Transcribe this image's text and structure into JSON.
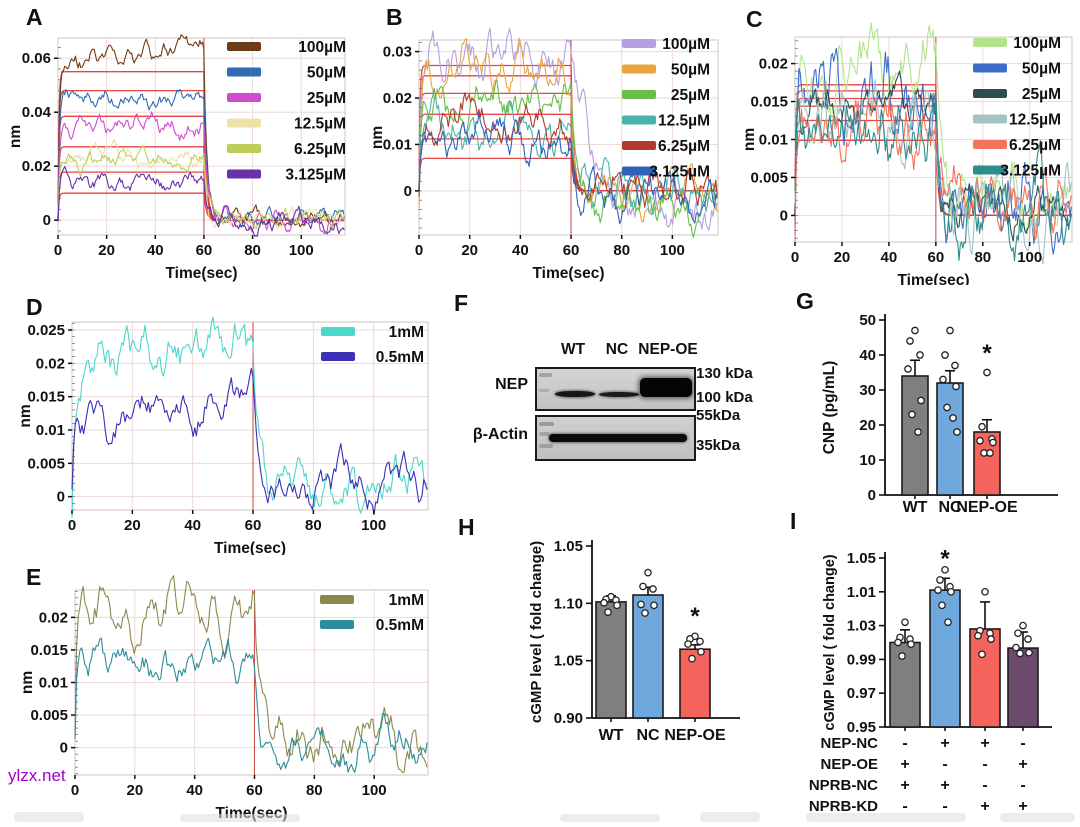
{
  "figure": {
    "watermark": {
      "text": "ylzx.net",
      "color": "#a100cf"
    },
    "panel_letters": [
      "A",
      "B",
      "C",
      "D",
      "E",
      "F",
      "G",
      "H",
      "I"
    ]
  },
  "chart_data": [
    {
      "id": "A",
      "type": "line",
      "xlabel": "Time(sec)",
      "ylabel": "nm",
      "xlim": [
        0,
        118
      ],
      "x_ticks": [
        0,
        20,
        40,
        60,
        80,
        100
      ],
      "ylim": [
        -0.0055,
        0.0675
      ],
      "y_ticks": [
        0,
        0.02,
        0.04,
        0.06
      ],
      "y_tick_labels": [
        "0",
        "0.02",
        "0.04",
        "0.06"
      ],
      "association_end_sec": 60,
      "fit_color": "#e03c3c",
      "series": [
        {
          "name": "100µM",
          "color": "#6e3b17",
          "plateau": 0.058,
          "drift": 0.007,
          "noise": 0.0016,
          "post": 0.0005
        },
        {
          "name": "50µM",
          "color": "#2f6cb3",
          "plateau": 0.0445,
          "drift": 0.001,
          "noise": 0.0015,
          "post": 0.0005
        },
        {
          "name": "25µM",
          "color": "#cf4ccf",
          "plateau": 0.034,
          "drift": 0.002,
          "noise": 0.0017,
          "post": -0.0005
        },
        {
          "name": "12.5µM",
          "color": "#eee0a9",
          "plateau": 0.0235,
          "drift": 0.001,
          "noise": 0.0015,
          "post": 0.0005
        },
        {
          "name": "6.25µM",
          "color": "#bfce59",
          "plateau": 0.0215,
          "drift": 0.0005,
          "noise": 0.0015,
          "post": 0
        },
        {
          "name": "3.125µM",
          "color": "#6930a8",
          "plateau": 0.0135,
          "drift": 0.001,
          "noise": 0.0015,
          "post": -0.001
        }
      ],
      "fit_plateaus": [
        0.055,
        0.048,
        0.0385,
        0.0272,
        0.0178,
        0.01
      ]
    },
    {
      "id": "B",
      "type": "line",
      "xlabel": "Time(sec)",
      "ylabel": "nm",
      "xlim": [
        0,
        118
      ],
      "x_ticks": [
        0,
        20,
        40,
        60,
        80,
        100
      ],
      "ylim": [
        -0.0095,
        0.0325
      ],
      "y_ticks": [
        0,
        0.01,
        0.02,
        0.03
      ],
      "y_tick_labels": [
        "0",
        "0.01",
        "0.02",
        "0.03"
      ],
      "association_end_sec": 60,
      "fit_color": "#e03c3c",
      "series": [
        {
          "name": "100µM",
          "color": "#b3a1e0",
          "plateau": 0.029,
          "drift": 0,
          "noise": 0.0022,
          "post": -0.0055,
          "post_tau": 9
        },
        {
          "name": "50µM",
          "color": "#e9a43f",
          "plateau": 0.026,
          "drift": 0,
          "noise": 0.0018,
          "post": -0.001
        },
        {
          "name": "25µM",
          "color": "#67bf4a",
          "plateau": 0.019,
          "drift": 0,
          "noise": 0.0018,
          "post": -0.0025
        },
        {
          "name": "12.5µM",
          "color": "#46b5aa",
          "plateau": 0.013,
          "drift": 0,
          "noise": 0.0018,
          "post": 0.0005
        },
        {
          "name": "6.25µM",
          "color": "#b23a2c",
          "plateau": 0.014,
          "drift": 0,
          "noise": 0.0018,
          "post": 0.001
        },
        {
          "name": "3.125µM",
          "color": "#2f63b8",
          "plateau": 0.011,
          "drift": 0,
          "noise": 0.0018,
          "post": -0.0005
        }
      ],
      "fit_plateaus": [
        0.027,
        0.0248,
        0.021,
        0.0165,
        0.0112,
        0.007
      ]
    },
    {
      "id": "C",
      "type": "line",
      "xlabel": "Time(sec)",
      "ylabel": "nm",
      "xlim": [
        0,
        118
      ],
      "x_ticks": [
        0,
        20,
        40,
        60,
        80,
        100
      ],
      "ylim": [
        -0.0035,
        0.0235
      ],
      "y_ticks": [
        0,
        0.005,
        0.01,
        0.015,
        0.02
      ],
      "y_tick_labels": [
        "0",
        "0.005",
        "0.01",
        "0.015",
        "0.02"
      ],
      "association_end_sec": 60,
      "fit_color": "#e03c3c",
      "series": [
        {
          "name": "100µM",
          "color": "#b5e28c",
          "plateau": 0.02,
          "drift": 0,
          "noise": 0.0018,
          "post": 0.002
        },
        {
          "name": "50µM",
          "color": "#3f6bca",
          "plateau": 0.016,
          "drift": 0,
          "noise": 0.0021,
          "post": 0.001
        },
        {
          "name": "25µM",
          "color": "#2e4d4d",
          "plateau": 0.015,
          "drift": 0,
          "noise": 0.0012,
          "post": 0.001
        },
        {
          "name": "12.5µM",
          "color": "#a3c3c4",
          "plateau": 0.0135,
          "drift": 0,
          "noise": 0.0018,
          "post": 0.0015
        },
        {
          "name": "6.25µM",
          "color": "#f2745a",
          "plateau": 0.012,
          "drift": 0,
          "noise": 0.0018,
          "post": 0.002
        },
        {
          "name": "3.125µM",
          "color": "#2f8c8c",
          "plateau": 0.011,
          "drift": 0,
          "noise": 0.002,
          "post": 0.0005
        }
      ],
      "fit_plateaus": [
        0.0172,
        0.0164,
        0.0154,
        0.0144,
        0.0125,
        0.0099
      ]
    },
    {
      "id": "D",
      "type": "line",
      "xlabel": "Time(sec)",
      "ylabel": "nm",
      "xlim": [
        0,
        118
      ],
      "x_ticks": [
        0,
        20,
        40,
        60,
        80,
        100
      ],
      "ylim": [
        -0.002,
        0.0262
      ],
      "y_ticks": [
        0,
        0.005,
        0.01,
        0.015,
        0.02,
        0.025
      ],
      "y_tick_labels": [
        "0",
        "0.005",
        "0.01",
        "0.015",
        "0.02",
        "0.025"
      ],
      "association_end_sec": 60,
      "fit_color": "#e03c3c",
      "series": [
        {
          "name": "1mM",
          "color": "#4cd7cb",
          "plateau": 0.018,
          "drift": 0.0065,
          "noise": 0.0017,
          "post": 0.0025
        },
        {
          "name": "0.5mM",
          "color": "#3a30b5",
          "plateau": 0.0115,
          "drift": 0.003,
          "noise": 0.0014,
          "post": 0.0018
        }
      ],
      "fit_plateaus": []
    },
    {
      "id": "E",
      "type": "line",
      "xlabel": "Time(sec)",
      "ylabel": "nm",
      "xlim": [
        0,
        118
      ],
      "x_ticks": [
        0,
        20,
        40,
        60,
        80,
        100
      ],
      "ylim": [
        -0.0042,
        0.0242
      ],
      "y_ticks": [
        0,
        0.005,
        0.01,
        0.015,
        0.02
      ],
      "y_tick_labels": [
        "0",
        "0.005",
        "0.01",
        "0.015",
        "0.02"
      ],
      "association_end_sec": 60,
      "fit_color": "#e03c3c",
      "series": [
        {
          "name": "1mM",
          "color": "#8a8a4f",
          "plateau": 0.0205,
          "drift": 0.0015,
          "noise": 0.0016,
          "post": 0.001
        },
        {
          "name": "0.5mM",
          "color": "#2d8c9b",
          "plateau": 0.0135,
          "drift": 0,
          "noise": 0.0013,
          "post": 0.0003
        }
      ],
      "fit_plateaus": []
    },
    {
      "id": "F",
      "type": "blot",
      "lane_labels": [
        "WT",
        "NC",
        "NEP-OE"
      ],
      "rows": [
        {
          "target": "NEP",
          "marker_labels": [
            "130 kDa",
            "100 kDa"
          ],
          "band_intensities": [
            "medium",
            "medium",
            "strong"
          ]
        },
        {
          "target": "β-Actin",
          "marker_labels": [
            "55kDa",
            "35kDa"
          ],
          "band_intensities": [
            "strong",
            "strong",
            "strong"
          ]
        }
      ]
    },
    {
      "id": "G",
      "type": "bar",
      "ylabel": "CNP (pg/mL)",
      "categories": [
        "WT",
        "NC",
        "NEP-OE"
      ],
      "values": [
        34,
        32,
        18
      ],
      "error_tops": [
        38.5,
        35.5,
        21.5
      ],
      "ylim": [
        0,
        50
      ],
      "tick_labels_top_to_bottom": [
        "50",
        "40",
        "30",
        "20",
        "10",
        "0"
      ],
      "colors": [
        "#7f7f7f",
        "#6fa8dc",
        "#f4635c"
      ],
      "points": [
        [
          47,
          44,
          40,
          36,
          27,
          23,
          18
        ],
        [
          47,
          40,
          37,
          33,
          31,
          25,
          22,
          18
        ],
        [
          35,
          19.5,
          16,
          15.5,
          15,
          12,
          12
        ]
      ],
      "significance": {
        "bar_index": 2,
        "symbol": "*",
        "star_frac": 0.8
      }
    },
    {
      "id": "H",
      "type": "bar",
      "ylabel": "cGMP level ( fold change)",
      "categories": [
        "WT",
        "NC",
        "NEP-OE"
      ],
      "values_approx": [
        1.1,
        1.11,
        1.06
      ],
      "tick_labels_top_to_bottom": [
        "1.05",
        "1.10",
        "1.05",
        "0.90"
      ],
      "bar_fracs": [
        0.675,
        0.715,
        0.4
      ],
      "err_top_fracs": [
        0.71,
        0.76,
        0.425
      ],
      "colors": [
        "#7f7f7f",
        "#6fa8dc",
        "#f4635c"
      ],
      "points_fracs": [
        [
          0.705,
          0.69,
          0.685,
          0.67,
          0.655,
          0.615
        ],
        [
          0.845,
          0.765,
          0.75,
          0.66,
          0.655,
          0.61
        ],
        [
          0.475,
          0.46,
          0.445,
          0.43,
          0.385,
          0.345
        ]
      ],
      "significance": {
        "bar_index": 2,
        "symbol": "*",
        "star_frac": 0.58
      }
    },
    {
      "id": "I",
      "type": "bar",
      "ylabel": "cGMP level ( fold change)",
      "values_approx": [
        1.0,
        1.01,
        1.005,
        0.997
      ],
      "tick_labels_top_to_bottom": [
        "1.05",
        "1.01",
        "1.03",
        "0.99",
        "0.97",
        "0.95"
      ],
      "bar_fracs": [
        0.5,
        0.81,
        0.58,
        0.467
      ],
      "err_top_fracs": [
        0.575,
        0.88,
        0.74,
        0.562
      ],
      "colors": [
        "#7f7f7f",
        "#6fa8dc",
        "#f4635c",
        "#6b4a6d"
      ],
      "points_fracs": [
        [
          0.62,
          0.53,
          0.52,
          0.5,
          0.49,
          0.42
        ],
        [
          0.93,
          0.87,
          0.83,
          0.81,
          0.8,
          0.72,
          0.62
        ],
        [
          0.8,
          0.57,
          0.555,
          0.54,
          0.52,
          0.43
        ],
        [
          0.6,
          0.555,
          0.52,
          0.47,
          0.44,
          0.435
        ]
      ],
      "significance": {
        "bar_index": 1,
        "symbol": "*",
        "star_frac": 0.985
      },
      "condition_matrix": {
        "rows": [
          "NEP-NC",
          "NEP-OE",
          "NPRB-NC",
          "NPRB-KD"
        ],
        "signs": [
          [
            "-",
            "+",
            "+",
            "-"
          ],
          [
            "+",
            "-",
            "-",
            "+"
          ],
          [
            "+",
            "+",
            "-",
            "-"
          ],
          [
            "-",
            "-",
            "+",
            "+"
          ]
        ]
      }
    }
  ]
}
